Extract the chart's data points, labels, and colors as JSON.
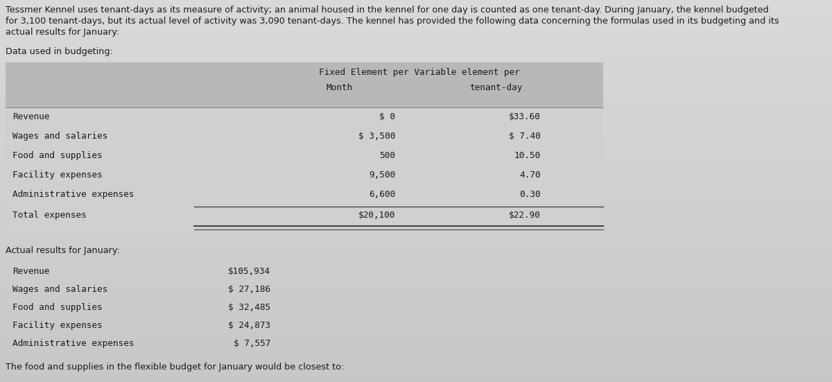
{
  "bg_color": "#c8c8c8",
  "text_color": "#1a1a1a",
  "intro_text_line1": "Tessmer Kennel uses tenant-days as its measure of activity; an animal housed in the kennel for one day is counted as one tenant-day. During January, the kennel budgeted",
  "intro_text_line2": "for 3,100 tenant-days, but its actual level of activity was 3,090 tenant-days. The kennel has provided the following data concerning the formulas used in its budgeting and its",
  "intro_text_line3": "actual results for January:",
  "section1_label": "Data used in budgeting:",
  "table_header_line1": "Fixed Element per Variable element per",
  "table_header_line2_col1": "Month",
  "table_header_line2_col2": "tenant-day",
  "table_rows": [
    {
      "label": "Revenue",
      "fixed": "$ 0",
      "variable": "$33.60"
    },
    {
      "label": "Wages and salaries",
      "fixed": "$ 3,500",
      "variable": "$ 7.40"
    },
    {
      "label": "Food and supplies",
      "fixed": "500",
      "variable": "10.50"
    },
    {
      "label": "Facility expenses",
      "fixed": "9,500",
      "variable": "4.70"
    },
    {
      "label": "Administrative expenses",
      "fixed": "6,600",
      "variable": "0.30"
    }
  ],
  "table_total_row": {
    "label": "Total expenses",
    "fixed": "$20,100",
    "variable": "$22.90"
  },
  "section2_label": "Actual results for January:",
  "actual_rows": [
    {
      "label": "Revenue",
      "value": "$105,934"
    },
    {
      "label": "Wages and salaries",
      "value": "$ 27,186"
    },
    {
      "label": "Food and supplies",
      "value": "$ 32,485"
    },
    {
      "label": "Facility expenses",
      "value": "$ 24,873"
    },
    {
      "label": "Administrative expenses",
      "value": "$ 7,557"
    }
  ],
  "question": "The food and supplies in the flexible budget for January would be closest to:",
  "monospace_font": "DejaVu Sans Mono",
  "sans_font": "DejaVu Sans",
  "intro_fontsize": 9.2,
  "label_fontsize": 9.2,
  "table_fontsize": 9.2,
  "question_fontsize": 9.2
}
